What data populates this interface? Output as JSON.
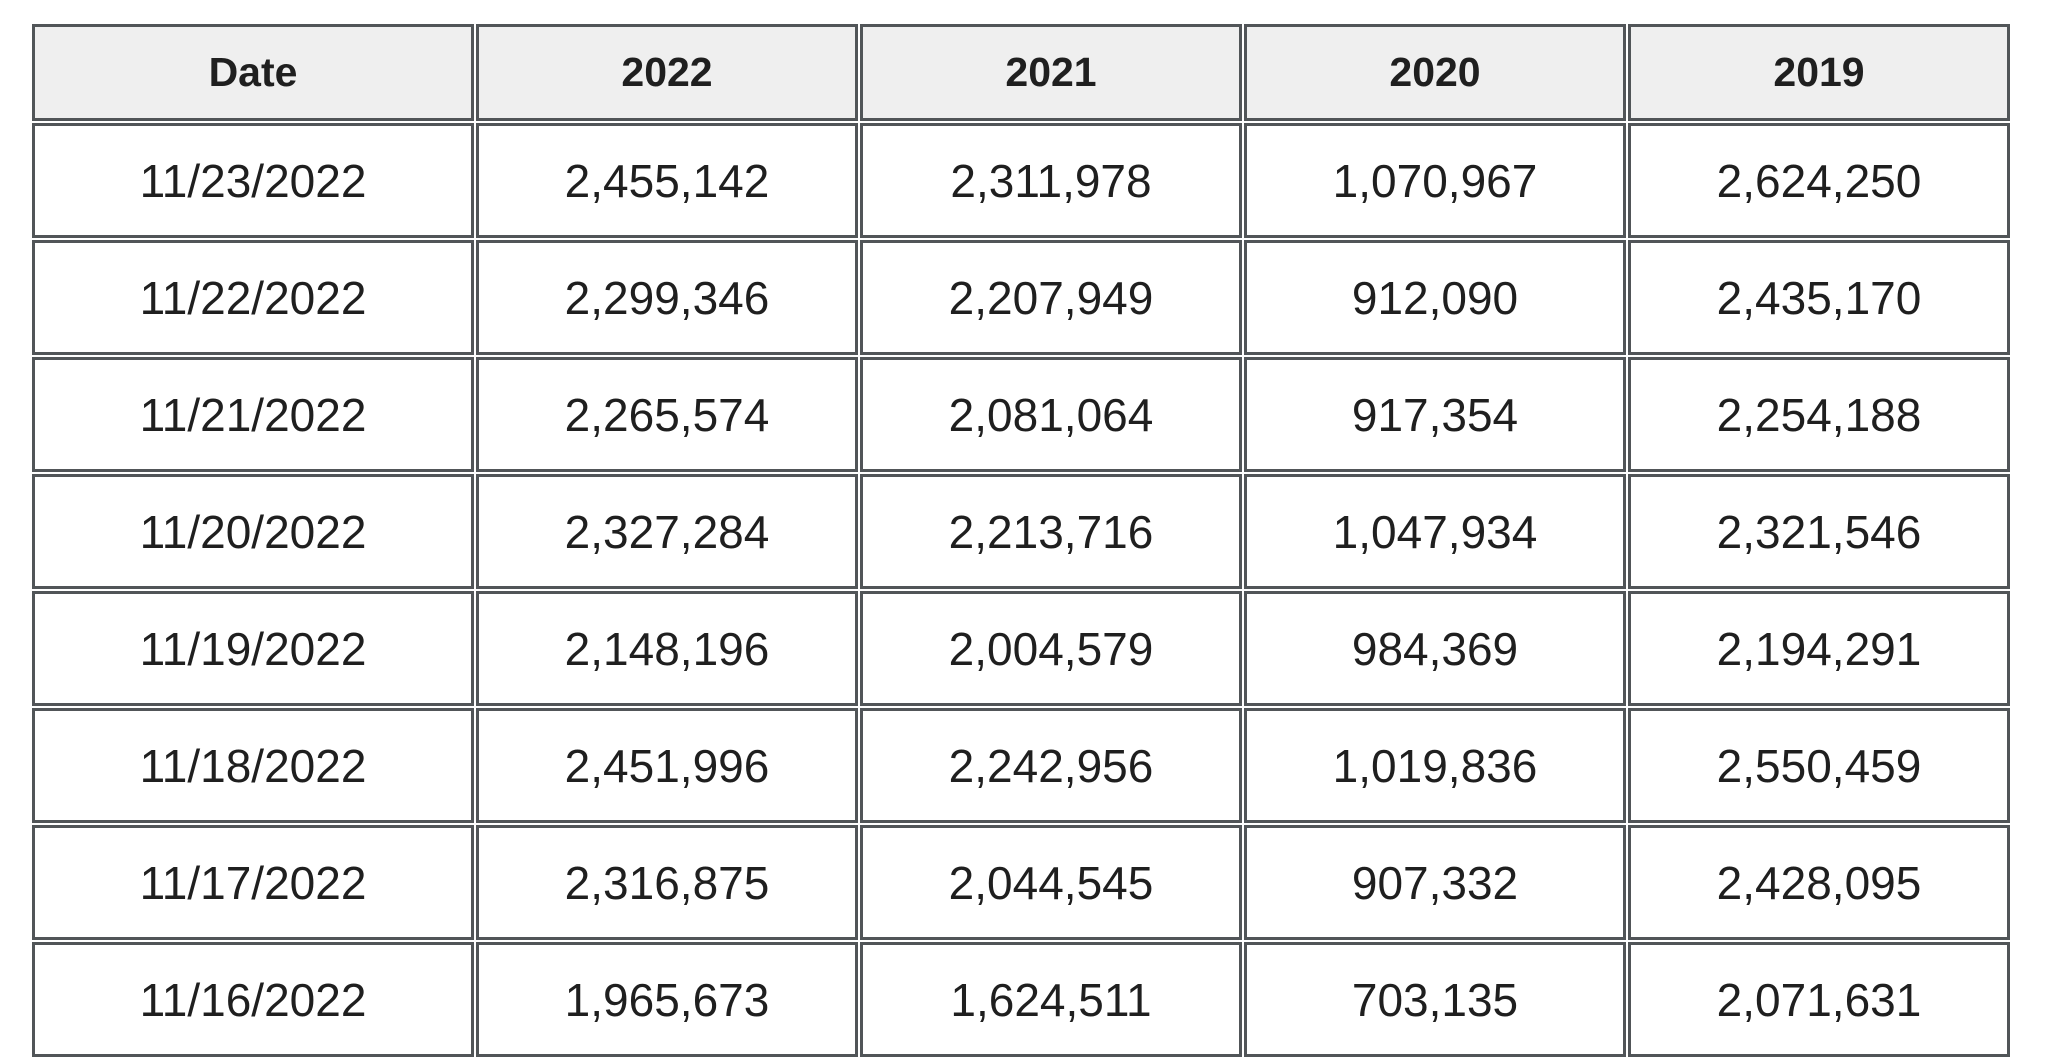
{
  "theme": {
    "border": "#515558",
    "header-bg": "#efefef",
    "body-bg": "#ffffff",
    "text": "#1f1f1f",
    "page-bg": "#ffffff"
  },
  "chart_data": {
    "type": "table",
    "title": "",
    "columns": [
      "Date",
      "2022",
      "2021",
      "2020",
      "2019"
    ],
    "rows": [
      [
        "11/23/2022",
        "2,455,142",
        "2,311,978",
        "1,070,967",
        "2,624,250"
      ],
      [
        "11/22/2022",
        "2,299,346",
        "2,207,949",
        "912,090",
        "2,435,170"
      ],
      [
        "11/21/2022",
        "2,265,574",
        "2,081,064",
        "917,354",
        "2,254,188"
      ],
      [
        "11/20/2022",
        "2,327,284",
        "2,213,716",
        "1,047,934",
        "2,321,546"
      ],
      [
        "11/19/2022",
        "2,148,196",
        "2,004,579",
        "984,369",
        "2,194,291"
      ],
      [
        "11/18/2022",
        "2,451,996",
        "2,242,956",
        "1,019,836",
        "2,550,459"
      ],
      [
        "11/17/2022",
        "2,316,875",
        "2,044,545",
        "907,332",
        "2,428,095"
      ],
      [
        "11/16/2022",
        "1,965,673",
        "1,624,511",
        "703,135",
        "2,071,631"
      ]
    ],
    "layout": {
      "grid": "on",
      "header_position": "top",
      "alignment": "center",
      "last_row_clipped_at_bottom": true
    }
  }
}
